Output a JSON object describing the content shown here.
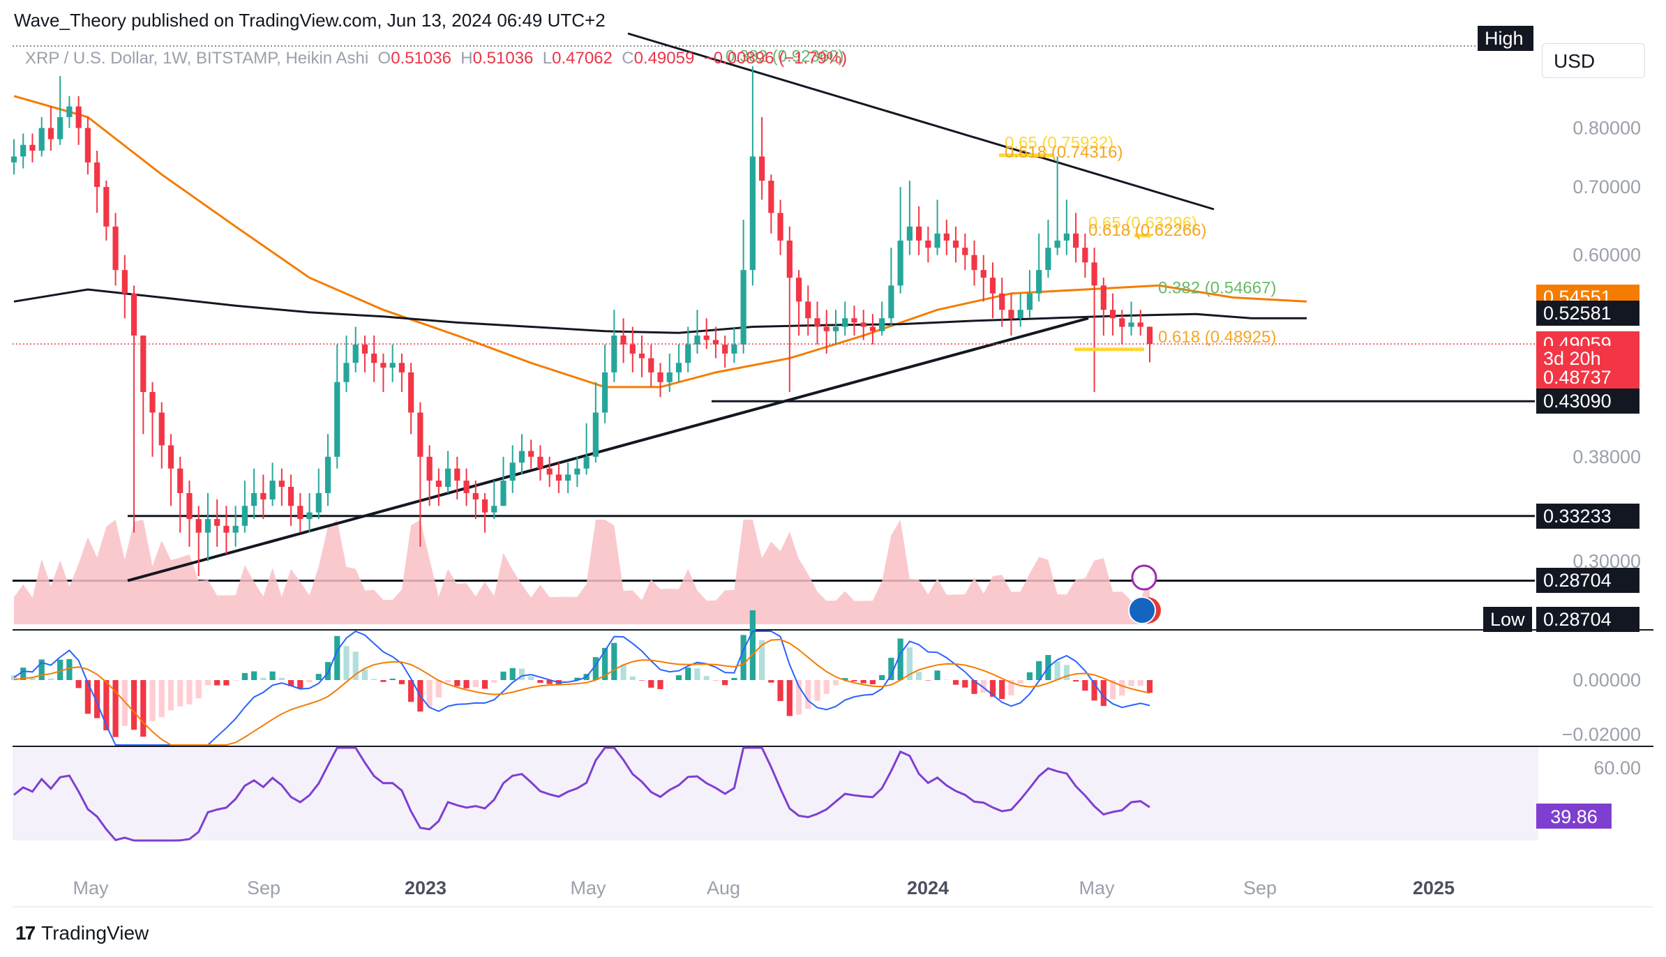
{
  "header": {
    "publisher": "Wave_Theory published on TradingView.com, Jun 13, 2024 06:49 UTC+2"
  },
  "symbol_line": {
    "name": "XRP / U.S. Dollar, 1W, BITSTAMP, Heikin Ashi",
    "o_label": "O",
    "o_value": "0.51036",
    "h_label": "H",
    "h_value": "0.51036",
    "l_label": "L",
    "l_value": "0.47062",
    "c_label": "C",
    "c_value": "0.49059",
    "change": "−0.00896 (−1.79%)"
  },
  "currency_button": "USD",
  "footer": {
    "logo_glyph": "17",
    "brand": "TradingView"
  },
  "colors": {
    "bull": "#26a69a",
    "bear": "#f23645",
    "ema_orange": "#f57c00",
    "ema_black": "#131722",
    "fib_green": "#66bb6a",
    "fib_orange": "#f5a623",
    "fib_yellow": "#fdd835",
    "macd_blue": "#2962ff",
    "rsi_purple": "#7e3fd0"
  },
  "chart_data": [
    {
      "type": "candlestick",
      "panel": "price",
      "title": "XRP / U.S. Dollar, 1W, BITSTAMP, Heikin Ashi",
      "x_ticks": [
        "May",
        "Sep",
        "2023",
        "May",
        "Aug",
        "2024",
        "May",
        "Sep",
        "2025"
      ],
      "y_ticks": [
        "0.80000",
        "0.70000",
        "0.60000",
        "0.38000",
        "0.30000"
      ],
      "y_scale": "log",
      "y_range": [
        0.258,
        0.98
      ],
      "last_close": 0.49059,
      "series": [
        {
          "name": "EMA 50",
          "color": "#f57c00",
          "points": [
            [
              0,
              0.86
            ],
            [
              8,
              0.82
            ],
            [
              16,
              0.72
            ],
            [
              24,
              0.64
            ],
            [
              32,
              0.57
            ],
            [
              40,
              0.53
            ],
            [
              48,
              0.5
            ],
            [
              56,
              0.47
            ],
            [
              64,
              0.445
            ],
            [
              70,
              0.445
            ],
            [
              76,
              0.46
            ],
            [
              84,
              0.475
            ],
            [
              92,
              0.5
            ],
            [
              100,
              0.53
            ],
            [
              108,
              0.55
            ],
            [
              116,
              0.555
            ],
            [
              124,
              0.56
            ],
            [
              132,
              0.545
            ],
            [
              140,
              0.54
            ]
          ]
        },
        {
          "name": "EMA 200",
          "color": "#131722",
          "points": [
            [
              0,
              0.54
            ],
            [
              8,
              0.555
            ],
            [
              16,
              0.545
            ],
            [
              24,
              0.535
            ],
            [
              32,
              0.527
            ],
            [
              40,
              0.522
            ],
            [
              48,
              0.515
            ],
            [
              56,
              0.51
            ],
            [
              64,
              0.505
            ],
            [
              72,
              0.503
            ],
            [
              80,
              0.51
            ],
            [
              88,
              0.512
            ],
            [
              96,
              0.513
            ],
            [
              104,
              0.517
            ],
            [
              112,
              0.52
            ],
            [
              120,
              0.523
            ],
            [
              128,
              0.525
            ],
            [
              134,
              0.52
            ],
            [
              140,
              0.52
            ]
          ]
        }
      ],
      "candles": [
        [
          0.74,
          0.75,
          0.78,
          0.72
        ],
        [
          0.75,
          0.77,
          0.79,
          0.73
        ],
        [
          0.77,
          0.76,
          0.79,
          0.74
        ],
        [
          0.76,
          0.8,
          0.82,
          0.75
        ],
        [
          0.8,
          0.78,
          0.84,
          0.76
        ],
        [
          0.78,
          0.82,
          0.9,
          0.77
        ],
        [
          0.82,
          0.84,
          0.86,
          0.8
        ],
        [
          0.84,
          0.8,
          0.86,
          0.77
        ],
        [
          0.8,
          0.74,
          0.82,
          0.72
        ],
        [
          0.74,
          0.7,
          0.76,
          0.66
        ],
        [
          0.7,
          0.64,
          0.71,
          0.62
        ],
        [
          0.64,
          0.58,
          0.66,
          0.56
        ],
        [
          0.58,
          0.55,
          0.6,
          0.52
        ],
        [
          0.55,
          0.5,
          0.56,
          0.32
        ],
        [
          0.5,
          0.44,
          0.5,
          0.4
        ],
        [
          0.44,
          0.42,
          0.45,
          0.38
        ],
        [
          0.42,
          0.39,
          0.43,
          0.37
        ],
        [
          0.39,
          0.37,
          0.4,
          0.34
        ],
        [
          0.37,
          0.35,
          0.38,
          0.32
        ],
        [
          0.35,
          0.33,
          0.36,
          0.31
        ],
        [
          0.33,
          0.32,
          0.34,
          0.29
        ],
        [
          0.32,
          0.33,
          0.35,
          0.3
        ],
        [
          0.33,
          0.325,
          0.345,
          0.31
        ],
        [
          0.325,
          0.32,
          0.34,
          0.305
        ],
        [
          0.32,
          0.325,
          0.34,
          0.31
        ],
        [
          0.325,
          0.34,
          0.36,
          0.32
        ],
        [
          0.34,
          0.35,
          0.37,
          0.33
        ],
        [
          0.35,
          0.345,
          0.365,
          0.33
        ],
        [
          0.345,
          0.36,
          0.375,
          0.34
        ],
        [
          0.36,
          0.355,
          0.37,
          0.34
        ],
        [
          0.355,
          0.34,
          0.365,
          0.325
        ],
        [
          0.34,
          0.33,
          0.35,
          0.32
        ],
        [
          0.33,
          0.335,
          0.35,
          0.32
        ],
        [
          0.335,
          0.35,
          0.37,
          0.33
        ],
        [
          0.35,
          0.38,
          0.4,
          0.34
        ],
        [
          0.38,
          0.45,
          0.49,
          0.37
        ],
        [
          0.45,
          0.47,
          0.5,
          0.44
        ],
        [
          0.47,
          0.49,
          0.51,
          0.46
        ],
        [
          0.49,
          0.48,
          0.5,
          0.46
        ],
        [
          0.48,
          0.47,
          0.5,
          0.45
        ],
        [
          0.47,
          0.465,
          0.48,
          0.44
        ],
        [
          0.465,
          0.47,
          0.49,
          0.45
        ],
        [
          0.47,
          0.46,
          0.48,
          0.44
        ],
        [
          0.46,
          0.42,
          0.47,
          0.4
        ],
        [
          0.42,
          0.38,
          0.43,
          0.31
        ],
        [
          0.38,
          0.36,
          0.39,
          0.34
        ],
        [
          0.36,
          0.355,
          0.37,
          0.34
        ],
        [
          0.355,
          0.37,
          0.385,
          0.35
        ],
        [
          0.37,
          0.36,
          0.38,
          0.345
        ],
        [
          0.36,
          0.35,
          0.37,
          0.34
        ],
        [
          0.35,
          0.345,
          0.36,
          0.33
        ],
        [
          0.345,
          0.335,
          0.35,
          0.32
        ],
        [
          0.335,
          0.34,
          0.36,
          0.33
        ],
        [
          0.34,
          0.36,
          0.38,
          0.34
        ],
        [
          0.36,
          0.375,
          0.39,
          0.35
        ],
        [
          0.375,
          0.385,
          0.4,
          0.365
        ],
        [
          0.385,
          0.38,
          0.395,
          0.37
        ],
        [
          0.38,
          0.37,
          0.39,
          0.36
        ],
        [
          0.37,
          0.365,
          0.38,
          0.355
        ],
        [
          0.365,
          0.36,
          0.375,
          0.35
        ],
        [
          0.36,
          0.365,
          0.375,
          0.35
        ],
        [
          0.365,
          0.37,
          0.38,
          0.355
        ],
        [
          0.37,
          0.38,
          0.41,
          0.365
        ],
        [
          0.38,
          0.42,
          0.45,
          0.375
        ],
        [
          0.42,
          0.46,
          0.49,
          0.41
        ],
        [
          0.46,
          0.5,
          0.53,
          0.45
        ],
        [
          0.5,
          0.49,
          0.52,
          0.47
        ],
        [
          0.49,
          0.48,
          0.51,
          0.46
        ],
        [
          0.48,
          0.475,
          0.5,
          0.455
        ],
        [
          0.475,
          0.46,
          0.49,
          0.445
        ],
        [
          0.46,
          0.45,
          0.47,
          0.435
        ],
        [
          0.45,
          0.46,
          0.48,
          0.44
        ],
        [
          0.46,
          0.47,
          0.49,
          0.45
        ],
        [
          0.47,
          0.49,
          0.51,
          0.46
        ],
        [
          0.49,
          0.5,
          0.53,
          0.48
        ],
        [
          0.5,
          0.495,
          0.52,
          0.485
        ],
        [
          0.495,
          0.49,
          0.51,
          0.475
        ],
        [
          0.49,
          0.48,
          0.5,
          0.465
        ],
        [
          0.48,
          0.49,
          0.51,
          0.47
        ],
        [
          0.49,
          0.58,
          0.65,
          0.48
        ],
        [
          0.58,
          0.75,
          0.92,
          0.56
        ],
        [
          0.75,
          0.71,
          0.82,
          0.68
        ],
        [
          0.71,
          0.66,
          0.72,
          0.63
        ],
        [
          0.66,
          0.62,
          0.68,
          0.6
        ],
        [
          0.62,
          0.57,
          0.64,
          0.44
        ],
        [
          0.57,
          0.54,
          0.58,
          0.5
        ],
        [
          0.54,
          0.52,
          0.56,
          0.5
        ],
        [
          0.52,
          0.51,
          0.54,
          0.49
        ],
        [
          0.51,
          0.505,
          0.53,
          0.48
        ],
        [
          0.505,
          0.51,
          0.53,
          0.49
        ],
        [
          0.51,
          0.52,
          0.54,
          0.5
        ],
        [
          0.52,
          0.515,
          0.535,
          0.5
        ],
        [
          0.515,
          0.51,
          0.53,
          0.495
        ],
        [
          0.51,
          0.505,
          0.525,
          0.49
        ],
        [
          0.505,
          0.52,
          0.54,
          0.5
        ],
        [
          0.52,
          0.56,
          0.61,
          0.51
        ],
        [
          0.56,
          0.62,
          0.7,
          0.55
        ],
        [
          0.62,
          0.64,
          0.71,
          0.6
        ],
        [
          0.64,
          0.62,
          0.67,
          0.6
        ],
        [
          0.62,
          0.61,
          0.64,
          0.59
        ],
        [
          0.61,
          0.63,
          0.68,
          0.6
        ],
        [
          0.63,
          0.62,
          0.65,
          0.6
        ],
        [
          0.62,
          0.61,
          0.64,
          0.59
        ],
        [
          0.61,
          0.6,
          0.63,
          0.58
        ],
        [
          0.6,
          0.58,
          0.62,
          0.56
        ],
        [
          0.58,
          0.57,
          0.6,
          0.54
        ],
        [
          0.57,
          0.55,
          0.59,
          0.52
        ],
        [
          0.55,
          0.53,
          0.57,
          0.51
        ],
        [
          0.53,
          0.52,
          0.55,
          0.5
        ],
        [
          0.52,
          0.53,
          0.55,
          0.51
        ],
        [
          0.53,
          0.55,
          0.58,
          0.52
        ],
        [
          0.55,
          0.58,
          0.63,
          0.54
        ],
        [
          0.58,
          0.61,
          0.65,
          0.57
        ],
        [
          0.61,
          0.62,
          0.75,
          0.6
        ],
        [
          0.62,
          0.63,
          0.68,
          0.6
        ],
        [
          0.63,
          0.61,
          0.66,
          0.59
        ],
        [
          0.61,
          0.59,
          0.63,
          0.57
        ],
        [
          0.59,
          0.56,
          0.61,
          0.44
        ],
        [
          0.56,
          0.53,
          0.57,
          0.5
        ],
        [
          0.53,
          0.52,
          0.55,
          0.5
        ],
        [
          0.52,
          0.51,
          0.53,
          0.49
        ],
        [
          0.51,
          0.515,
          0.54,
          0.5
        ],
        [
          0.515,
          0.51,
          0.53,
          0.5
        ],
        [
          0.51,
          0.49059,
          0.51036,
          0.47062
        ]
      ],
      "annotations": [
        {
          "text": "0.382 (0.92360)",
          "color": "#66bb6a",
          "price": 0.9236
        },
        {
          "text": "0.65 (0.75932)",
          "color": "#fdd835",
          "price": 0.7593
        },
        {
          "text": "0.618 (0.74316)",
          "color": "#f5a623",
          "price": 0.7432
        },
        {
          "text": "0.65 (0.63296)",
          "color": "#fdd835",
          "price": 0.633
        },
        {
          "text": "0.618 (0.62266)",
          "color": "#f5a623",
          "price": 0.6227
        },
        {
          "text": "0.382 (0.54667)",
          "color": "#66bb6a",
          "price": 0.5467
        },
        {
          "text": "0.618 (0.48925)",
          "color": "#f5a623",
          "price": 0.48925
        }
      ],
      "horizontal_levels": [
        0.4309,
        0.33233,
        0.28704
      ],
      "price_tags": [
        {
          "text": "High",
          "bg": "#131722",
          "price": 0.98
        },
        {
          "text": "0.54551",
          "bg": "#f57c00",
          "price": 0.54551
        },
        {
          "text": "0.52581",
          "bg": "#131722",
          "price": 0.52581
        },
        {
          "text": "0.49059",
          "bg": "#f23645",
          "price": 0.49059
        },
        {
          "text": "3d 20h",
          "bg": "#f23645",
          "price": 0.475
        },
        {
          "text": "0.48737",
          "bg": "#f23645",
          "price": 0.455
        },
        {
          "text": "0.43090",
          "bg": "#131722",
          "price": 0.4309
        },
        {
          "text": "0.33233",
          "bg": "#131722",
          "price": 0.33233
        },
        {
          "text": "0.28704",
          "bg": "#131722",
          "price": 0.28704
        },
        {
          "text": "Low",
          "bg": "#131722",
          "price": 0.263
        },
        {
          "text": "0.28704",
          "bg": "#131722",
          "price": 0.263
        }
      ]
    },
    {
      "type": "histogram",
      "panel": "macd",
      "y_ticks": [
        "0.00000",
        "−0.02000"
      ]
    },
    {
      "type": "line",
      "panel": "rsi",
      "y_ticks": [
        "60.00"
      ],
      "last_value": "39.86"
    }
  ]
}
